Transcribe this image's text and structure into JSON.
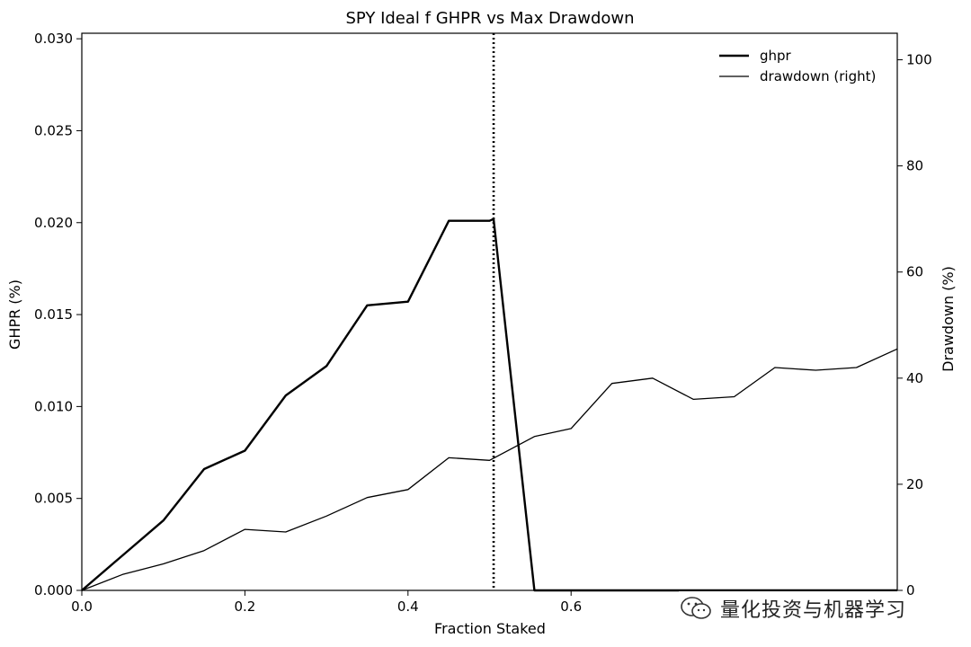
{
  "chart_data": {
    "type": "line",
    "title": "SPY Ideal f GHPR vs Max Drawdown",
    "xlabel": "Fraction Staked",
    "ylabel": "GHPR (%)",
    "y2label": "Drawdown (%)",
    "xlim": [
      0.0,
      1.0
    ],
    "ylim": [
      0.0,
      0.0303
    ],
    "y2lim": [
      0,
      105
    ],
    "xticks": [
      0.0,
      0.2,
      0.4,
      0.6
    ],
    "xtick_labels": [
      "0.0",
      "0.2",
      "0.4",
      "0.6"
    ],
    "yticks": [
      0.0,
      0.005,
      0.01,
      0.015,
      0.02,
      0.025,
      0.03
    ],
    "ytick_labels": [
      "0.000",
      "0.005",
      "0.010",
      "0.015",
      "0.020",
      "0.025",
      "0.030"
    ],
    "y2ticks": [
      0,
      20,
      40,
      60,
      80,
      100
    ],
    "y2tick_labels": [
      "0",
      "20",
      "40",
      "60",
      "80",
      "100"
    ],
    "grid": false,
    "legend_position": "top-right",
    "vline": {
      "x": 0.505,
      "style": "dotted"
    },
    "series": [
      {
        "name": "ghpr",
        "axis": "left",
        "x": [
          0.0,
          0.05,
          0.1,
          0.15,
          0.2,
          0.25,
          0.3,
          0.35,
          0.4,
          0.45,
          0.5,
          0.505,
          0.555,
          0.6,
          0.65,
          0.7,
          0.75,
          0.8,
          0.85,
          0.9,
          0.95,
          1.0
        ],
        "values": [
          0.0,
          0.0019,
          0.0038,
          0.0066,
          0.0076,
          0.0106,
          0.0122,
          0.0155,
          0.0157,
          0.0201,
          0.0201,
          0.0202,
          0.0,
          0.0,
          0.0,
          0.0,
          0.0,
          0.0,
          0.0,
          0.0,
          0.0,
          0.0
        ]
      },
      {
        "name": "drawdown (right)",
        "axis": "right",
        "x": [
          0.0,
          0.05,
          0.1,
          0.15,
          0.2,
          0.25,
          0.3,
          0.35,
          0.4,
          0.45,
          0.5,
          0.555,
          0.6,
          0.65,
          0.7,
          0.75,
          0.8,
          0.85,
          0.9,
          0.95,
          1.0
        ],
        "values": [
          0,
          3.0,
          5.0,
          7.5,
          11.5,
          11.0,
          14.0,
          17.5,
          19.0,
          25.0,
          24.5,
          29.0,
          30.5,
          39.0,
          40.0,
          36.0,
          36.5,
          42.0,
          41.5,
          42.0,
          45.5
        ]
      }
    ]
  },
  "watermark": {
    "text": "量化投资与机器学习",
    "icon": "wechat-icon"
  }
}
